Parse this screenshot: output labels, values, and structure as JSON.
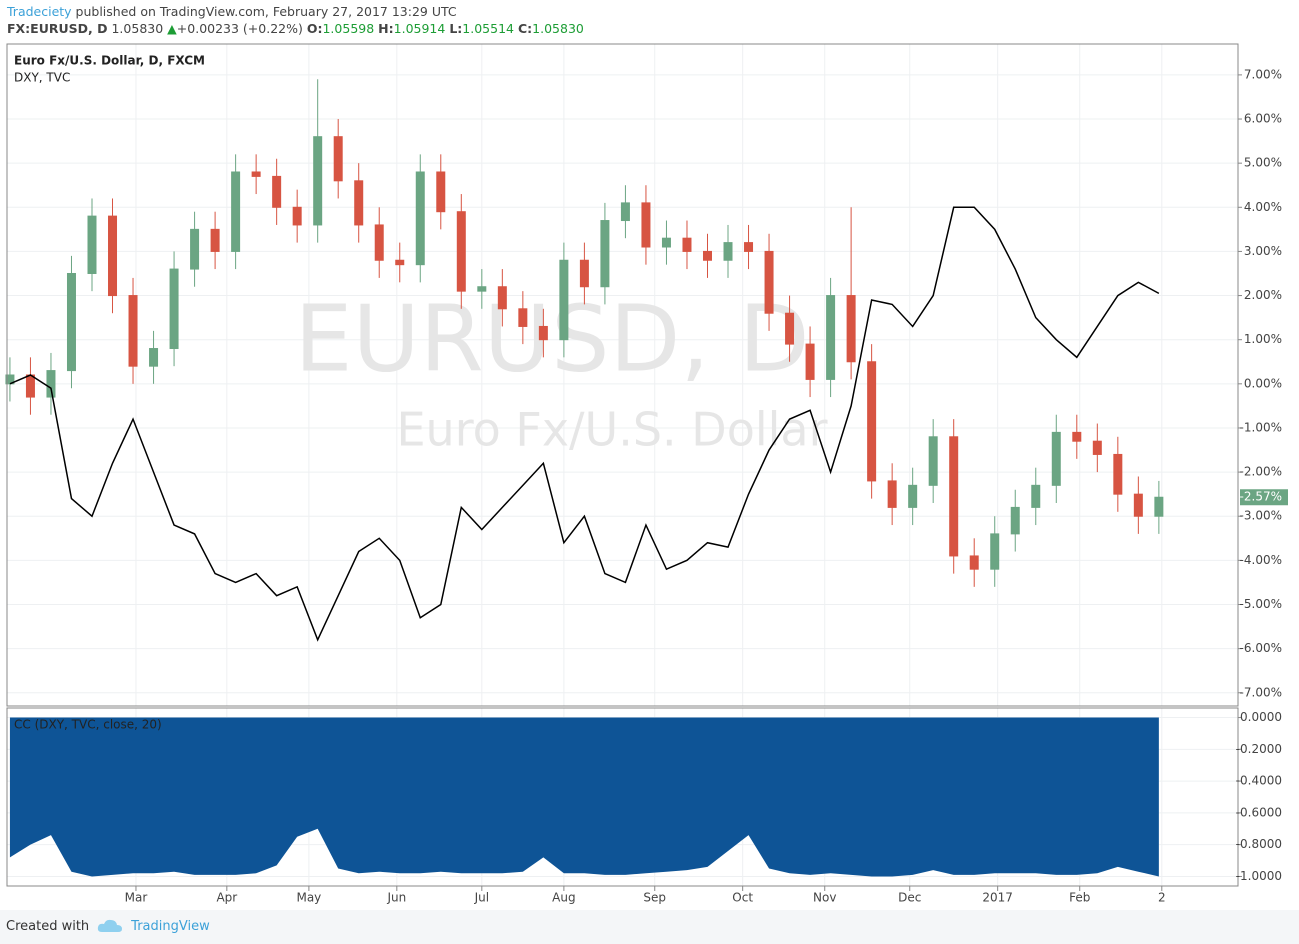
{
  "header": {
    "author": "Tradeciety",
    "published": "published on TradingView.com, February 27, 2017 13:29 UTC",
    "symbol": "FX:EURUSD, D",
    "last": "1.05830",
    "arrow": "▲",
    "change": "+0.00233 (+0.22%)",
    "o_label": "O:",
    "o": "1.05598",
    "h_label": "H:",
    "h": "1.05914",
    "l_label": "L:",
    "l": "1.05514",
    "c_label": "C:",
    "c": "1.05830"
  },
  "footer": {
    "created": "Created with",
    "brand": "TradingView"
  },
  "chart_data": [
    {
      "type": "candlestick",
      "watermark": "EURUSD, D",
      "watermark_sub": "Euro Fx/U.S. Dollar",
      "x": [
        1,
        8,
        15,
        22,
        29,
        36,
        43,
        50,
        57,
        64,
        71,
        78,
        85,
        92,
        99,
        106,
        113,
        120,
        127,
        134,
        141,
        148,
        155,
        162,
        169,
        176,
        183,
        190,
        197,
        204,
        211,
        218,
        225,
        232,
        239,
        246,
        253,
        260,
        267,
        274,
        281,
        288,
        295,
        302,
        309,
        316,
        323,
        330,
        337,
        344,
        351,
        358,
        365,
        372,
        379,
        386,
        393
      ],
      "xlim": [
        0,
        420
      ],
      "xticks": [
        {
          "value": 44,
          "label": "Mar"
        },
        {
          "value": 75,
          "label": "Apr"
        },
        {
          "value": 103,
          "label": "May"
        },
        {
          "value": 133,
          "label": "Jun"
        },
        {
          "value": 162,
          "label": "Jul"
        },
        {
          "value": 190,
          "label": "Aug"
        },
        {
          "value": 221,
          "label": "Sep"
        },
        {
          "value": 251,
          "label": "Oct"
        },
        {
          "value": 279,
          "label": "Nov"
        },
        {
          "value": 308,
          "label": "Dec"
        },
        {
          "value": 338,
          "label": "2017"
        },
        {
          "value": 366,
          "label": "Feb"
        },
        {
          "value": 394,
          "label": "2"
        }
      ],
      "ylim": [
        -7.3,
        7.7
      ],
      "yticks": [
        {
          "value": 7,
          "label": "7.00%"
        },
        {
          "value": 6,
          "label": "6.00%"
        },
        {
          "value": 5,
          "label": "5.00%"
        },
        {
          "value": 4,
          "label": "4.00%"
        },
        {
          "value": 3,
          "label": "3.00%"
        },
        {
          "value": 2,
          "label": "2.00%"
        },
        {
          "value": 1,
          "label": "1.00%"
        },
        {
          "value": 0,
          "label": "0.00%"
        },
        {
          "value": -1,
          "label": "-1.00%"
        },
        {
          "value": -2,
          "label": "-2.00%"
        },
        {
          "value": -3,
          "label": "-3.00%"
        },
        {
          "value": -4,
          "label": "-4.00%"
        },
        {
          "value": -5,
          "label": "-5.00%"
        },
        {
          "value": -6,
          "label": "-6.00%"
        },
        {
          "value": -7,
          "label": "-7.00%"
        }
      ],
      "grid": true,
      "series": [
        {
          "name": "Euro Fx/U.S. Dollar, D, FXCM",
          "up_color": "#6ba583",
          "down_color": "#d75442",
          "open": [
            0.0,
            0.2,
            -0.3,
            0.3,
            2.5,
            3.8,
            2.0,
            0.4,
            0.8,
            2.6,
            3.5,
            3.0,
            4.8,
            4.7,
            4.0,
            3.6,
            5.6,
            4.6,
            3.6,
            2.8,
            2.7,
            4.8,
            3.9,
            2.1,
            2.2,
            1.7,
            1.3,
            1.0,
            2.8,
            2.2,
            3.7,
            4.1,
            3.1,
            3.3,
            3.0,
            2.8,
            3.2,
            3.0,
            1.6,
            0.9,
            0.1,
            2.0,
            0.5,
            -2.2,
            -2.8,
            -2.3,
            -1.2,
            -3.9,
            -4.2,
            -3.4,
            -2.8,
            -2.3,
            -1.1,
            -1.3,
            -1.6,
            -2.5,
            -3.0
          ],
          "high": [
            0.6,
            0.6,
            0.7,
            2.9,
            4.2,
            4.2,
            2.4,
            1.2,
            3.0,
            3.9,
            3.9,
            5.2,
            5.2,
            5.1,
            4.4,
            6.9,
            6.0,
            5.0,
            4.0,
            3.2,
            5.2,
            5.2,
            4.3,
            2.6,
            2.6,
            2.1,
            1.7,
            3.2,
            3.2,
            4.1,
            4.5,
            4.5,
            3.7,
            3.7,
            3.4,
            3.6,
            3.6,
            3.4,
            2.0,
            1.3,
            2.4,
            4.0,
            0.9,
            -1.8,
            -1.9,
            -0.8,
            -0.8,
            -3.5,
            -3.0,
            -2.4,
            -1.9,
            -0.7,
            -0.7,
            -0.9,
            -1.2,
            -2.1,
            -2.2
          ],
          "low": [
            -0.4,
            -0.7,
            -0.7,
            -0.1,
            2.1,
            1.6,
            0.0,
            0.0,
            0.4,
            2.2,
            2.6,
            2.6,
            4.3,
            3.6,
            3.2,
            3.2,
            4.2,
            3.2,
            2.4,
            2.3,
            2.3,
            3.5,
            1.7,
            1.7,
            1.3,
            0.9,
            0.6,
            0.6,
            1.8,
            1.8,
            3.3,
            2.7,
            2.7,
            2.6,
            2.4,
            2.4,
            2.6,
            1.2,
            0.5,
            -0.3,
            -0.3,
            0.1,
            -2.6,
            -3.2,
            -3.2,
            -2.7,
            -4.3,
            -4.6,
            -4.6,
            -3.8,
            -3.2,
            -2.7,
            -1.7,
            -2.0,
            -2.9,
            -3.4,
            -3.4
          ],
          "close": [
            0.2,
            -0.3,
            0.3,
            2.5,
            3.8,
            2.0,
            0.4,
            0.8,
            2.6,
            3.5,
            3.0,
            4.8,
            4.7,
            4.0,
            3.6,
            5.6,
            4.6,
            3.6,
            2.8,
            2.7,
            4.8,
            3.9,
            2.1,
            2.2,
            1.7,
            1.3,
            1.0,
            2.8,
            2.2,
            3.7,
            4.1,
            3.1,
            3.3,
            3.0,
            2.8,
            3.2,
            3.0,
            1.6,
            0.9,
            0.1,
            2.0,
            0.5,
            -2.2,
            -2.8,
            -2.3,
            -1.2,
            -3.9,
            -4.2,
            -3.4,
            -2.8,
            -2.3,
            -1.1,
            -1.3,
            -1.6,
            -2.5,
            -3.0,
            -2.57
          ],
          "last_label": "-2.57%"
        },
        {
          "name": "DXY, TVC",
          "color": "#000000",
          "values": [
            0.0,
            0.2,
            -0.1,
            -2.6,
            -3.0,
            -1.8,
            -0.8,
            -2.0,
            -3.2,
            -3.4,
            -4.3,
            -4.5,
            -4.3,
            -4.8,
            -4.6,
            -5.8,
            -4.8,
            -3.8,
            -3.5,
            -4.0,
            -5.3,
            -5.0,
            -2.8,
            -3.3,
            -2.8,
            -2.3,
            -1.8,
            -3.6,
            -3.0,
            -4.3,
            -4.5,
            -3.2,
            -4.2,
            -4.0,
            -3.6,
            -3.7,
            -2.5,
            -1.5,
            -0.8,
            -0.6,
            -2.0,
            -0.5,
            1.9,
            1.8,
            1.3,
            2.0,
            4.0,
            4.0,
            3.5,
            2.6,
            1.5,
            1.0,
            0.6,
            1.3,
            2.0,
            2.3,
            2.05
          ]
        }
      ]
    },
    {
      "type": "area",
      "title": "CC (DXY, TVC, close, 20)",
      "color": "#0e5496",
      "ylim": [
        -1.06,
        0.06
      ],
      "yticks": [
        {
          "value": 0,
          "label": "0.0000"
        },
        {
          "value": -0.2,
          "label": "-0.2000"
        },
        {
          "value": -0.4,
          "label": "-0.4000"
        },
        {
          "value": -0.6,
          "label": "-0.6000"
        },
        {
          "value": -0.8,
          "label": "-0.8000"
        },
        {
          "value": -1,
          "label": "-1.0000"
        }
      ],
      "values": [
        -0.88,
        -0.8,
        -0.74,
        -0.97,
        -1.0,
        -0.99,
        -0.98,
        -0.98,
        -0.97,
        -0.99,
        -0.99,
        -0.99,
        -0.98,
        -0.93,
        -0.75,
        -0.7,
        -0.95,
        -0.98,
        -0.97,
        -0.98,
        -0.98,
        -0.97,
        -0.98,
        -0.98,
        -0.98,
        -0.97,
        -0.88,
        -0.98,
        -0.98,
        -0.99,
        -0.99,
        -0.98,
        -0.97,
        -0.96,
        -0.94,
        -0.84,
        -0.74,
        -0.95,
        -0.98,
        -0.99,
        -0.98,
        -0.99,
        -1.0,
        -1.0,
        -0.99,
        -0.96,
        -0.99,
        -0.99,
        -0.98,
        -0.98,
        -0.98,
        -0.99,
        -0.99,
        -0.98,
        -0.94,
        -0.97,
        -1.0
      ]
    }
  ]
}
